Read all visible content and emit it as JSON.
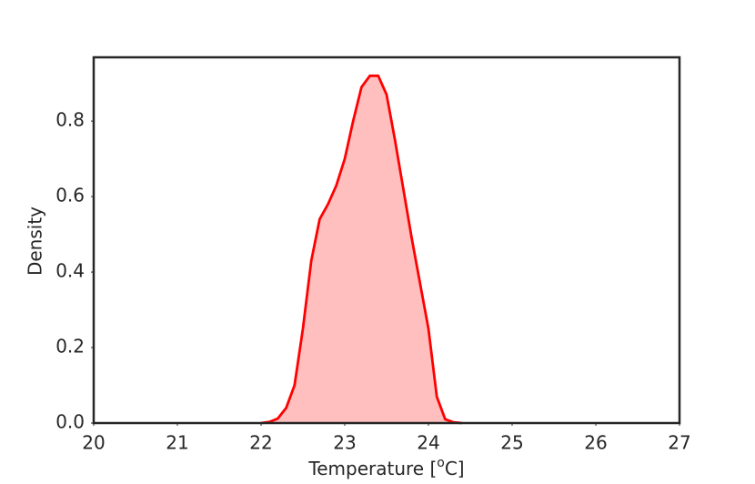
{
  "chart_data": {
    "type": "area",
    "ylabel": "Density",
    "xlabel_parts": [
      "Temperature [",
      "o",
      "C]"
    ],
    "x": [
      22.0,
      22.1,
      22.2,
      22.3,
      22.4,
      22.5,
      22.6,
      22.7,
      22.8,
      22.9,
      23.0,
      23.1,
      23.2,
      23.3,
      23.4,
      23.5,
      23.6,
      23.7,
      23.8,
      23.9,
      24.0,
      24.1,
      24.2,
      24.3,
      24.4
    ],
    "values": [
      0,
      0.003,
      0.012,
      0.04,
      0.1,
      0.25,
      0.43,
      0.54,
      0.58,
      0.63,
      0.7,
      0.8,
      0.89,
      0.92,
      0.92,
      0.87,
      0.75,
      0.62,
      0.49,
      0.37,
      0.25,
      0.07,
      0.01,
      0.002,
      0
    ],
    "color": "#ff0000",
    "fill": "#ffbfbf",
    "xlim": [
      20,
      27
    ],
    "ylim": [
      0,
      0.969
    ],
    "xticks": [
      20,
      21,
      22,
      23,
      24,
      25,
      26,
      27
    ],
    "yticks": [
      {
        "value": 0,
        "label": "0.0"
      },
      0.2,
      0.4,
      0.6,
      0.8
    ]
  }
}
